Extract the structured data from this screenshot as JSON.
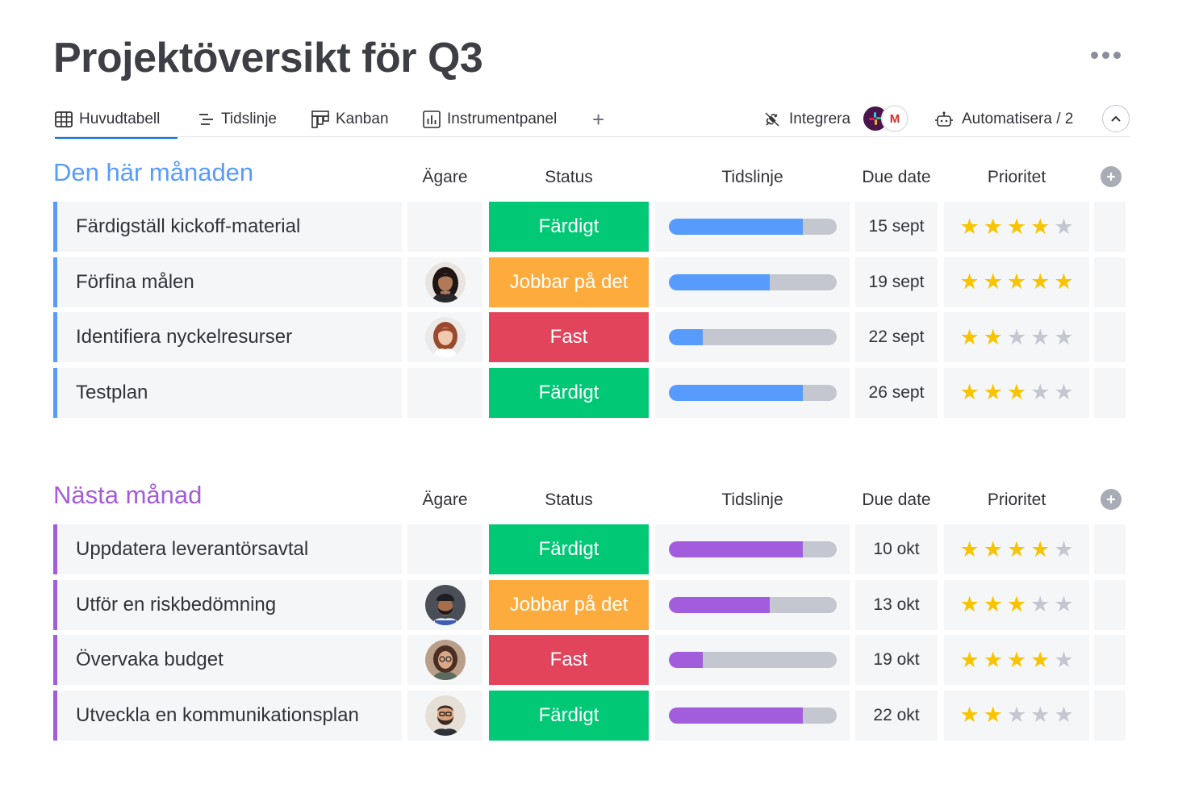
{
  "page": {
    "title": "Projektöversikt för Q3"
  },
  "tabs": [
    {
      "label": "Huvudtabell",
      "icon": "table-icon",
      "active": true
    },
    {
      "label": "Tidslinje",
      "icon": "timeline-icon"
    },
    {
      "label": "Kanban",
      "icon": "kanban-icon"
    },
    {
      "label": "Instrumentpanel",
      "icon": "dashboard-icon"
    }
  ],
  "toolbar": {
    "integrate_label": "Integrera",
    "automate_label": "Automatisera / 2",
    "gmail_glyph": "M"
  },
  "columns": {
    "owner": "Ägare",
    "status": "Status",
    "timeline": "Tidslinje",
    "due": "Due date",
    "priority": "Prioritet"
  },
  "colors": {
    "accent": "#0073ea",
    "done": "#00c875",
    "working": "#fdab3d",
    "stuck": "#e2445c",
    "group1": "#579bfc",
    "group2": "#a25ddc",
    "star_on": "#f8c400",
    "star_off": "#c5c7d0"
  },
  "groups": [
    {
      "title": "Den här månaden",
      "color": "#579bfc",
      "rows": [
        {
          "name": "Färdigställ kickoff-material",
          "owner": "",
          "status": "Färdigt",
          "status_key": "done",
          "progress": 0.8,
          "due": "15 sept",
          "stars": 4
        },
        {
          "name": "Förfina målen",
          "owner": "avatar-woman-dark-hair",
          "status": "Jobbar på det",
          "status_key": "working",
          "progress": 0.6,
          "due": "19 sept",
          "stars": 5
        },
        {
          "name": "Identifiera nyckelresurser",
          "owner": "avatar-woman-red-hair",
          "status": "Fast",
          "status_key": "stuck",
          "progress": 0.2,
          "due": "22 sept",
          "stars": 2
        },
        {
          "name": "Testplan",
          "owner": "",
          "status": "Färdigt",
          "status_key": "done",
          "progress": 0.8,
          "due": "26 sept",
          "stars": 3
        }
      ]
    },
    {
      "title": "Nästa månad",
      "color": "#a25ddc",
      "rows": [
        {
          "name": "Uppdatera leverantörsavtal",
          "owner": "",
          "status": "Färdigt",
          "status_key": "done",
          "progress": 0.8,
          "due": "10 okt",
          "stars": 4
        },
        {
          "name": "Utför en riskbedömning",
          "owner": "avatar-man-turban",
          "status": "Jobbar på det",
          "status_key": "working",
          "progress": 0.6,
          "due": "13 okt",
          "stars": 3
        },
        {
          "name": "Övervaka budget",
          "owner": "avatar-woman-glasses",
          "status": "Fast",
          "status_key": "stuck",
          "progress": 0.2,
          "due": "19 okt",
          "stars": 4
        },
        {
          "name": "Utveckla en kommunikationsplan",
          "owner": "avatar-man-beard",
          "status": "Färdigt",
          "status_key": "done",
          "progress": 0.8,
          "due": "22 okt",
          "stars": 2
        }
      ]
    }
  ]
}
